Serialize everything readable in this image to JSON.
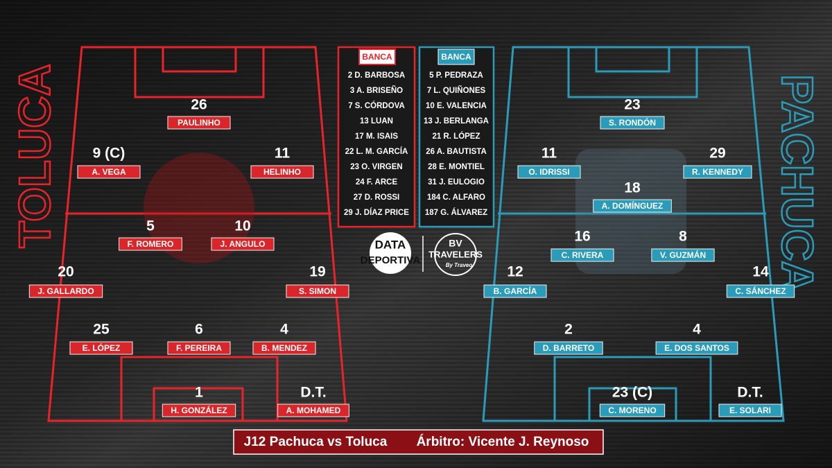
{
  "teams": [
    {
      "name": "TOLUCA",
      "players": [
        {
          "number": "26",
          "name": "PAULINHO"
        },
        {
          "number": "9 (C)",
          "name": "A. VEGA"
        },
        {
          "number": "11",
          "name": "HELINHO"
        },
        {
          "number": "5",
          "name": "F. ROMERO"
        },
        {
          "number": "10",
          "name": "J. ANGULO"
        },
        {
          "number": "20",
          "name": "J. GALLARDO"
        },
        {
          "number": "19",
          "name": "S. SIMON"
        },
        {
          "number": "25",
          "name": "E. LÓPEZ"
        },
        {
          "number": "6",
          "name": "F. PEREIRA"
        },
        {
          "number": "4",
          "name": "B. MENDEZ"
        },
        {
          "number": "1",
          "name": "H. GONZÁLEZ"
        },
        {
          "number": "D.T.",
          "name": "A. MOHAMED"
        }
      ],
      "bench_title": "BANCA",
      "bench": [
        "2 D. BARBOSA",
        "3 A. BRISEÑO",
        "7 S. CÓRDOVA",
        "13 LUAN",
        "17 M. ISAIS",
        "22 L. M. GARCÍA",
        "23 O. VIRGEN",
        "24 F. ARCE",
        "27 D. ROSSI",
        "29 J. DÍAZ PRICE"
      ]
    },
    {
      "name": "PACHUCA",
      "players": [
        {
          "number": "23",
          "name": "S. RONDÓN"
        },
        {
          "number": "11",
          "name": "O. IDRISSI"
        },
        {
          "number": "29",
          "name": "R. KENNEDY"
        },
        {
          "number": "18",
          "name": "A. DOMÍNGUEZ"
        },
        {
          "number": "16",
          "name": "C. RIVERA"
        },
        {
          "number": "8",
          "name": "V. GUZMÁN"
        },
        {
          "number": "12",
          "name": "B. GARCÍA"
        },
        {
          "number": "14",
          "name": "C. SÁNCHEZ"
        },
        {
          "number": "2",
          "name": "D. BARRETO"
        },
        {
          "number": "4",
          "name": "E. DOS SANTOS"
        },
        {
          "number": "23 (C)",
          "name": "C. MORENO"
        },
        {
          "number": "D.T.",
          "name": "E. SOLARI"
        }
      ],
      "bench_title": "BANCA",
      "bench": [
        "5 P. PEDRAZA",
        "7 L. QUIÑONES",
        "10 E. VALENCIA",
        "13 J. BERLANGA",
        "21 R. LÓPEZ",
        "26 A. BAUTISTA",
        "28 E. MONTIEL",
        "31 J. EULOGIO",
        "184 C. ALFARO",
        "187 G. ÁLVAREZ"
      ]
    }
  ],
  "logos": {
    "data": [
      "DATA",
      "DEPORTIVA"
    ],
    "travelers": [
      "BV",
      "TRAVELERS",
      "By Traveo"
    ]
  },
  "footer": {
    "match": "J12 Pachuca vs Toluca",
    "referee": "Árbitro: Vicente J. Reynoso"
  }
}
